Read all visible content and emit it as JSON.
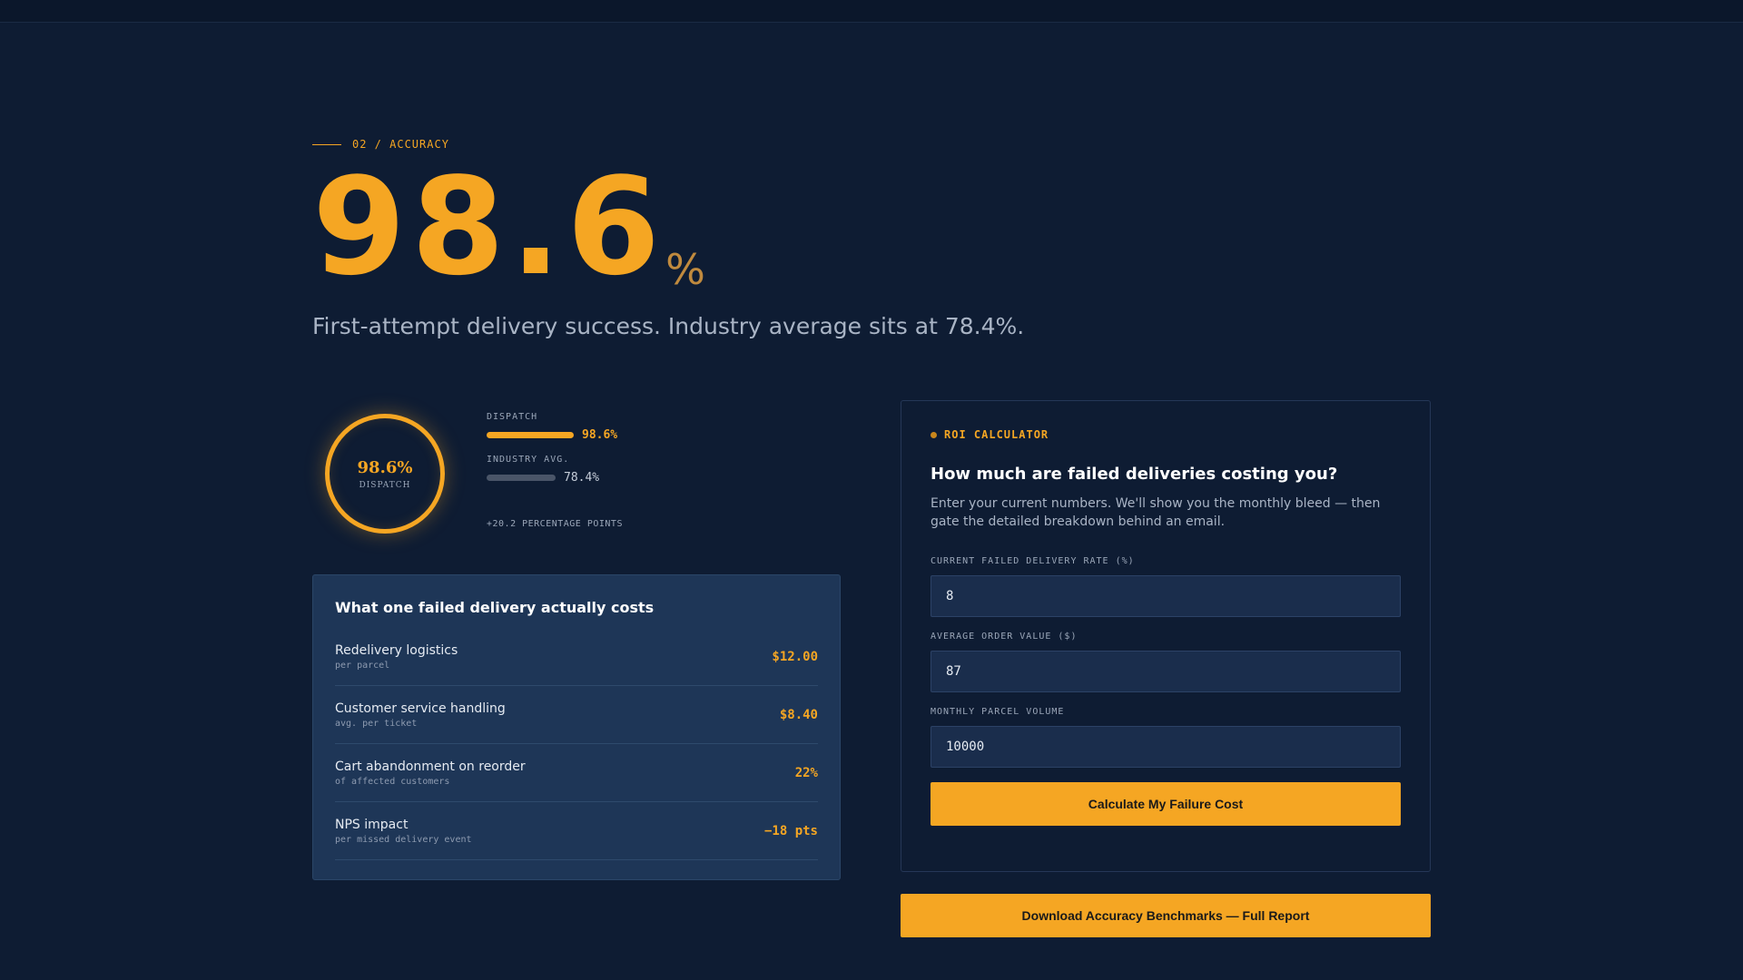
{
  "section": {
    "eyebrow": "02 / ACCURACY",
    "hero_value": "98.6",
    "hero_unit": "%",
    "subtitle": "First-attempt delivery success. Industry average sits at 78.4%."
  },
  "comparison": {
    "ring": {
      "value": "98.6%",
      "label": "DISPATCH",
      "fraction": 0.986
    },
    "bars": [
      {
        "label": "DISPATCH",
        "value": "98.6%",
        "percent": 98.6
      },
      {
        "label": "INDUSTRY AVG.",
        "value": "78.4%",
        "percent": 78.4
      }
    ],
    "difference": "+20.2 PERCENTAGE POINTS"
  },
  "costs": {
    "title": "What one failed delivery actually costs",
    "items": [
      {
        "name": "Redelivery logistics",
        "sub": "per parcel",
        "value": "$12.00"
      },
      {
        "name": "Customer service handling",
        "sub": "avg. per ticket",
        "value": "$8.40"
      },
      {
        "name": "Cart abandonment on reorder",
        "sub": "of affected customers",
        "value": "22%"
      },
      {
        "name": "NPS impact",
        "sub": "per missed delivery event",
        "value": "−18 pts"
      }
    ]
  },
  "roi": {
    "eyebrow": "ROI CALCULATOR",
    "title": "How much are failed deliveries costing you?",
    "description": "Enter your current numbers. We'll show you the monthly bleed — then gate the detailed breakdown behind an email.",
    "fields": [
      {
        "label": "CURRENT FAILED DELIVERY RATE (%)",
        "value": "8"
      },
      {
        "label": "AVERAGE ORDER VALUE ($)",
        "value": "87"
      },
      {
        "label": "MONTHLY PARCEL VOLUME",
        "value": "10000"
      }
    ],
    "calculate_label": "Calculate My Failure Cost"
  },
  "download_label": "Download Accuracy Benchmarks — Full Report",
  "colors": {
    "accent": "#f5a623",
    "background": "#0e1c33",
    "card": "#1e3657"
  }
}
